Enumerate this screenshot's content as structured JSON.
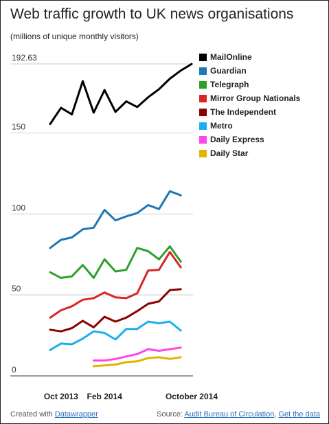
{
  "title": "Web traffic growth to UK news organisations",
  "subtitle": "(millions of unique monthly visitors)",
  "footer": {
    "created_prefix": "Created with ",
    "created_link": "Datawrapper",
    "source_prefix": "Source: ",
    "source_link": "Audit Bureau of Circulation",
    "separator": ", ",
    "data_link": "Get the data"
  },
  "chart_data": {
    "type": "line",
    "x": [
      "Sep 2013",
      "Oct 2013",
      "Nov 2013",
      "Dec 2013",
      "Jan 2014",
      "Feb 2014",
      "Mar 2014",
      "Apr 2014",
      "May 2014",
      "Jun 2014",
      "Jul 2014",
      "Aug 2014",
      "Sep 2014",
      "Oct 2014"
    ],
    "x_tick_labels": [
      "Oct 2013",
      "Feb 2014",
      "October 2014"
    ],
    "x_tick_positions": [
      "Oct 2013",
      "Feb 2014",
      "Oct 2014"
    ],
    "y_ticks": [
      0,
      50,
      100,
      150,
      192.63
    ],
    "ylim": [
      0,
      192.63
    ],
    "grid": true,
    "legend_position": "top-right",
    "series": [
      {
        "name": "MailOnline",
        "color": "#000000",
        "values": [
          155.5,
          165.5,
          161.5,
          182,
          162.5,
          176.5,
          163,
          169.5,
          166,
          172,
          177,
          183.5,
          188.5,
          192.6
        ]
      },
      {
        "name": "Guardian",
        "color": "#1f77b4",
        "values": [
          79,
          84,
          85.5,
          90.5,
          91.5,
          102.5,
          96,
          98.5,
          100.5,
          105.5,
          103,
          114,
          111.5,
          null
        ]
      },
      {
        "name": "Telegraph",
        "color": "#2ca02c",
        "values": [
          64,
          60.5,
          61.5,
          68.5,
          60.5,
          72,
          64.5,
          65.5,
          79,
          77,
          72,
          80,
          70.5,
          null
        ]
      },
      {
        "name": "Mirror Group Nationals",
        "color": "#d62728",
        "values": [
          36,
          40.5,
          43,
          47,
          48,
          51.5,
          48.5,
          48,
          51,
          65,
          65.5,
          76.5,
          67,
          null
        ]
      },
      {
        "name": "The Independent",
        "color": "#8b0000",
        "values": [
          28.5,
          27.5,
          29.5,
          34,
          30,
          36.5,
          33.5,
          36,
          40,
          44.5,
          46,
          53,
          53.5,
          null
        ]
      },
      {
        "name": "Metro",
        "color": "#1ab0ee",
        "values": [
          16,
          20,
          19.5,
          23,
          27.5,
          26.5,
          22.5,
          29,
          29,
          33.5,
          32.5,
          33.5,
          28,
          null
        ]
      },
      {
        "name": "Daily Express",
        "color": "#ff44ee",
        "values": [
          null,
          null,
          null,
          null,
          9.5,
          9.5,
          10.5,
          12,
          13.5,
          16.5,
          15.5,
          16.5,
          17.5,
          null
        ]
      },
      {
        "name": "Daily Star",
        "color": "#e0b500",
        "values": [
          null,
          null,
          null,
          null,
          6,
          6.5,
          7,
          8.5,
          9,
          11,
          11.5,
          10.5,
          11.5,
          null
        ]
      }
    ]
  }
}
